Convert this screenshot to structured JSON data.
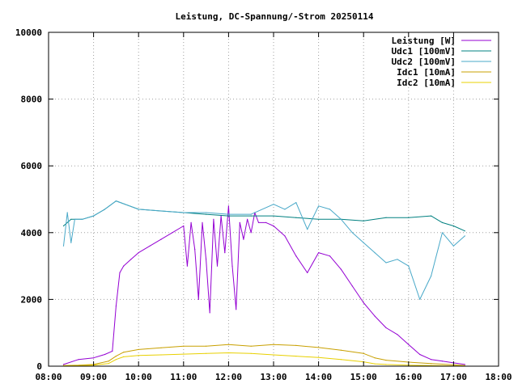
{
  "chart_data": {
    "type": "line",
    "title": "Leistung, DC-Spannung/-Strom 20250114",
    "xlabel": "",
    "ylabel": "",
    "xlim": [
      "08:00",
      "18:00"
    ],
    "ylim": [
      0,
      10000
    ],
    "x_ticks": [
      "08:00",
      "09:00",
      "10:00",
      "11:00",
      "12:00",
      "13:00",
      "14:00",
      "15:00",
      "16:00",
      "17:00",
      "18:00"
    ],
    "y_ticks": [
      "0",
      "2000",
      "4000",
      "6000",
      "8000",
      "10000"
    ],
    "grid": true,
    "legend_position": "top-right",
    "series": [
      {
        "name": "Leistung [W]",
        "color": "#9400d3",
        "x": [
          "08:20",
          "08:40",
          "09:00",
          "09:15",
          "09:25",
          "09:30",
          "09:35",
          "09:40",
          "09:50",
          "10:00",
          "10:15",
          "10:30",
          "10:45",
          "11:00",
          "11:05",
          "11:10",
          "11:15",
          "11:20",
          "11:25",
          "11:30",
          "11:35",
          "11:40",
          "11:45",
          "11:50",
          "11:55",
          "12:00",
          "12:05",
          "12:10",
          "12:15",
          "12:20",
          "12:25",
          "12:30",
          "12:35",
          "12:40",
          "12:50",
          "13:00",
          "13:15",
          "13:30",
          "13:45",
          "14:00",
          "14:15",
          "14:30",
          "14:45",
          "15:00",
          "15:15",
          "15:30",
          "15:45",
          "16:00",
          "16:15",
          "16:30",
          "16:45",
          "17:00",
          "17:15"
        ],
        "values": [
          50,
          200,
          250,
          350,
          450,
          1800,
          2800,
          3000,
          3200,
          3400,
          3600,
          3800,
          4000,
          4200,
          3000,
          4300,
          3500,
          2000,
          4300,
          3200,
          1600,
          4400,
          3000,
          4500,
          3400,
          4800,
          3000,
          1700,
          4300,
          3800,
          4400,
          4000,
          4600,
          4300,
          4300,
          4200,
          3900,
          3300,
          2800,
          3400,
          3300,
          2900,
          2400,
          1900,
          1500,
          1150,
          950,
          650,
          350,
          200,
          150,
          100,
          50
        ]
      },
      {
        "name": "Udc1 [100mV]",
        "color": "#008080",
        "x": [
          "08:20",
          "08:30",
          "08:45",
          "09:00",
          "09:15",
          "09:30",
          "10:00",
          "10:30",
          "11:00",
          "11:30",
          "12:00",
          "12:30",
          "13:00",
          "13:30",
          "14:00",
          "14:30",
          "15:00",
          "15:30",
          "16:00",
          "16:30",
          "16:45",
          "17:00",
          "17:15"
        ],
        "values": [
          4200,
          4400,
          4400,
          4500,
          4700,
          4950,
          4700,
          4650,
          4600,
          4550,
          4500,
          4500,
          4500,
          4450,
          4400,
          4400,
          4350,
          4450,
          4450,
          4500,
          4300,
          4200,
          4050
        ]
      },
      {
        "name": "Udc2 [100mV]",
        "color": "#48a8c8",
        "x": [
          "08:20",
          "08:25",
          "08:30",
          "08:35",
          "08:45",
          "09:00",
          "09:15",
          "09:30",
          "10:00",
          "10:30",
          "11:00",
          "11:30",
          "12:00",
          "12:30",
          "13:00",
          "13:15",
          "13:30",
          "13:45",
          "14:00",
          "14:15",
          "14:30",
          "14:45",
          "15:00",
          "15:15",
          "15:30",
          "15:45",
          "16:00",
          "16:15",
          "16:30",
          "16:45",
          "17:00",
          "17:15"
        ],
        "values": [
          3600,
          4600,
          3700,
          4400,
          4400,
          4500,
          4700,
          4950,
          4700,
          4650,
          4600,
          4600,
          4550,
          4550,
          4850,
          4700,
          4900,
          4100,
          4800,
          4700,
          4400,
          4000,
          3700,
          3400,
          3100,
          3200,
          3000,
          2000,
          2700,
          4000,
          3600,
          3900
        ]
      },
      {
        "name": "Idc1 [10mA]",
        "color": "#c8a000",
        "x": [
          "08:20",
          "08:40",
          "09:00",
          "09:20",
          "09:30",
          "09:40",
          "10:00",
          "10:30",
          "11:00",
          "11:30",
          "12:00",
          "12:30",
          "13:00",
          "13:30",
          "14:00",
          "14:30",
          "15:00",
          "15:15",
          "15:30",
          "16:00",
          "16:30",
          "17:00",
          "17:15"
        ],
        "values": [
          20,
          30,
          50,
          150,
          300,
          420,
          500,
          550,
          600,
          600,
          650,
          600,
          650,
          620,
          560,
          480,
          380,
          250,
          180,
          120,
          80,
          40,
          20
        ]
      },
      {
        "name": "Idc2 [10mA]",
        "color": "#e8d000",
        "x": [
          "08:20",
          "08:40",
          "09:00",
          "09:20",
          "09:30",
          "09:40",
          "10:00",
          "10:30",
          "11:00",
          "11:30",
          "12:00",
          "12:30",
          "13:00",
          "13:30",
          "14:00",
          "14:30",
          "15:00",
          "15:15",
          "15:30",
          "16:00",
          "16:30",
          "17:00",
          "17:15"
        ],
        "values": [
          15,
          20,
          30,
          80,
          200,
          280,
          320,
          340,
          360,
          380,
          400,
          380,
          340,
          300,
          260,
          200,
          130,
          70,
          50,
          30,
          20,
          10,
          5
        ]
      }
    ]
  }
}
